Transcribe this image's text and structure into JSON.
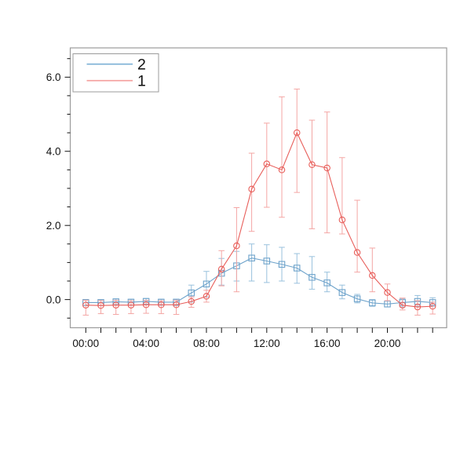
{
  "figure": {
    "background": "#ffffff",
    "frame_color": "#9b9b9b",
    "tick_color": "#111111"
  },
  "chart_data": {
    "type": "line",
    "title": "",
    "xlabel": "",
    "ylabel": "",
    "grid": false,
    "xlim": [
      -1.03,
      23.93
    ],
    "ylim": [
      -0.76,
      6.79
    ],
    "x_hours": [
      0,
      1,
      2,
      3,
      4,
      5,
      6,
      7,
      8,
      9,
      10,
      11,
      12,
      13,
      14,
      15,
      16,
      17,
      18,
      19,
      20,
      21,
      22,
      23
    ],
    "x_labeled_ticks": [
      {
        "hour": 0,
        "label": "00:00"
      },
      {
        "hour": 4,
        "label": "04:00"
      },
      {
        "hour": 8,
        "label": "08:00"
      },
      {
        "hour": 12,
        "label": "12:00"
      },
      {
        "hour": 16,
        "label": "16:00"
      },
      {
        "hour": 20,
        "label": "20:00"
      }
    ],
    "y_major_ticks": [
      {
        "value": 0,
        "label": "0.0"
      },
      {
        "value": 2,
        "label": "2.0"
      },
      {
        "value": 4,
        "label": "4.0"
      },
      {
        "value": 6,
        "label": "6.0"
      }
    ],
    "y_minor_step": 0.5,
    "legend": {
      "position": "top-left",
      "entries": [
        {
          "label": "2",
          "color": "#7cb0d6"
        },
        {
          "label": "1",
          "color": "#f49e9c"
        }
      ]
    },
    "series": [
      {
        "name": "2",
        "marker": "square",
        "color": "#6ea3cb",
        "errbar_color": "#99c1dd",
        "values": [
          -0.08,
          -0.08,
          -0.06,
          -0.07,
          -0.05,
          -0.07,
          -0.07,
          0.18,
          0.42,
          0.71,
          0.91,
          1.12,
          1.04,
          0.95,
          0.85,
          0.6,
          0.45,
          0.19,
          0.02,
          -0.09,
          -0.12,
          -0.08,
          -0.05,
          -0.08
        ],
        "err_lo": [
          -0.16,
          -0.16,
          -0.14,
          -0.15,
          -0.13,
          -0.15,
          -0.16,
          -0.07,
          0.07,
          0.39,
          0.5,
          0.5,
          0.46,
          0.5,
          0.44,
          0.28,
          0.21,
          0.02,
          -0.09,
          -0.18,
          -0.2,
          -0.2,
          -0.18,
          -0.18
        ],
        "err_hi": [
          0.0,
          0.0,
          0.02,
          0.01,
          0.03,
          0.01,
          0.01,
          0.39,
          0.76,
          1.11,
          1.3,
          1.5,
          1.48,
          1.41,
          1.24,
          1.16,
          0.74,
          0.39,
          0.14,
          0.0,
          -0.04,
          0.02,
          0.11,
          0.05
        ]
      },
      {
        "name": "1",
        "marker": "circle",
        "color": "#e85f5b",
        "errbar_color": "#f4a6a4",
        "values": [
          -0.15,
          -0.16,
          -0.15,
          -0.15,
          -0.14,
          -0.14,
          -0.14,
          -0.05,
          0.09,
          0.82,
          1.45,
          2.98,
          3.66,
          3.5,
          4.5,
          3.64,
          3.55,
          2.15,
          1.27,
          0.65,
          0.19,
          -0.15,
          -0.2,
          -0.18
        ],
        "err_lo": [
          -0.42,
          -0.38,
          -0.4,
          -0.38,
          -0.37,
          -0.38,
          -0.4,
          -0.21,
          -0.07,
          0.37,
          0.21,
          1.84,
          2.49,
          2.22,
          2.89,
          1.91,
          1.8,
          1.77,
          0.74,
          0.21,
          -0.03,
          -0.28,
          -0.42,
          -0.39
        ],
        "err_hi": [
          -0.02,
          -0.03,
          -0.02,
          -0.03,
          -0.02,
          -0.03,
          -0.02,
          0.07,
          0.25,
          1.32,
          2.48,
          3.95,
          4.76,
          5.47,
          5.68,
          4.84,
          5.06,
          3.83,
          2.68,
          1.39,
          0.42,
          0.04,
          -0.03,
          -0.07
        ]
      }
    ]
  }
}
